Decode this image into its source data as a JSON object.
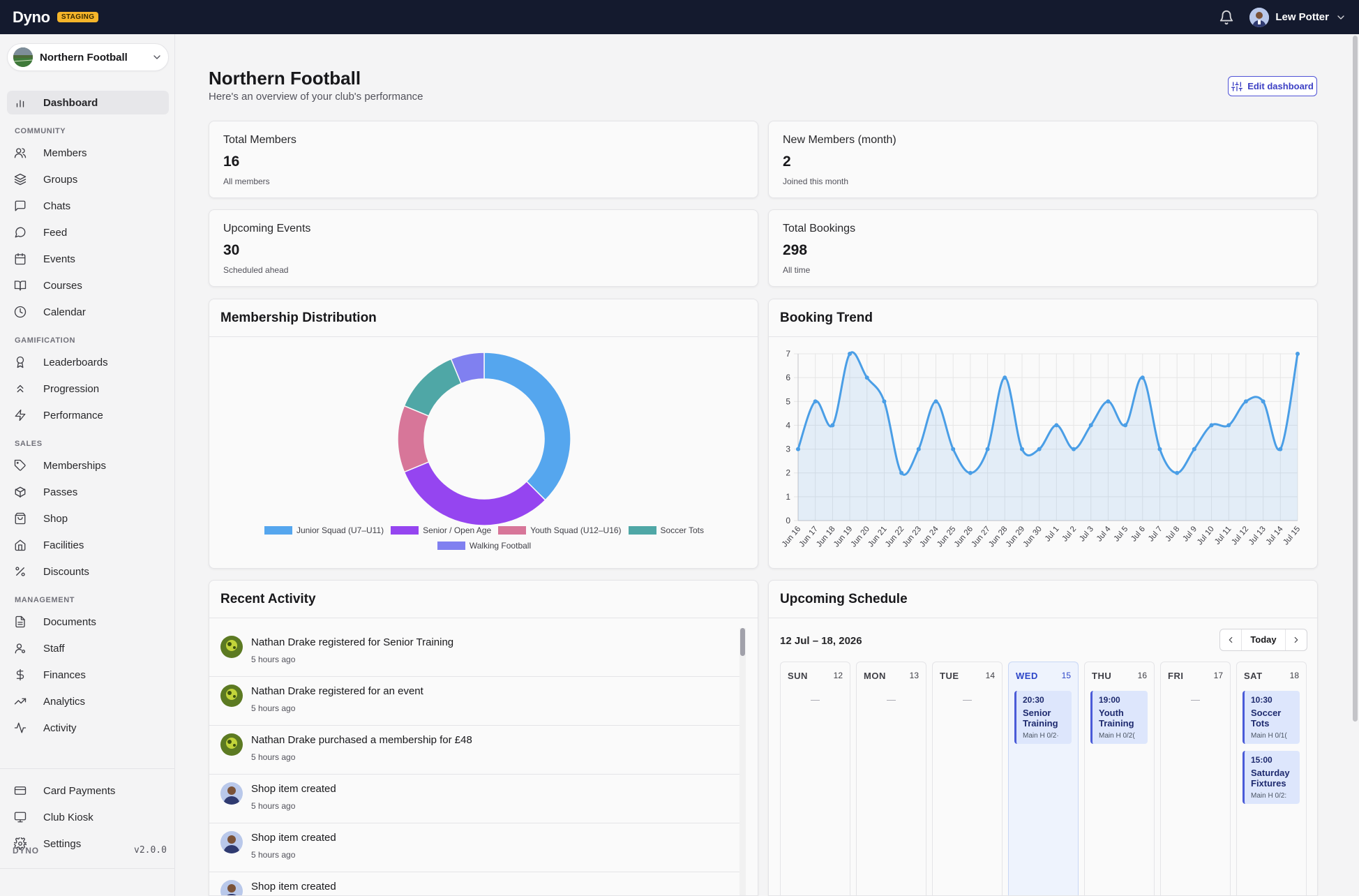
{
  "app": {
    "name": "Dyno",
    "env_badge": "STAGING"
  },
  "user": {
    "name": "Lew Potter"
  },
  "sidebar": {
    "club": "Northern Football",
    "items": {
      "dashboard": "Dashboard",
      "members": "Members",
      "groups": "Groups",
      "chats": "Chats",
      "feed": "Feed",
      "events": "Events",
      "courses": "Courses",
      "calendar": "Calendar",
      "leaderboards": "Leaderboards",
      "progression": "Progression",
      "performance": "Performance",
      "memberships": "Memberships",
      "passes": "Passes",
      "shop": "Shop",
      "facilities": "Facilities",
      "discounts": "Discounts",
      "documents": "Documents",
      "staff": "Staff",
      "finances": "Finances",
      "analytics": "Analytics",
      "activity": "Activity",
      "card_payments": "Card Payments",
      "club_kiosk": "Club Kiosk",
      "settings": "Settings"
    },
    "sections": {
      "community": "COMMUNITY",
      "gamification": "GAMIFICATION",
      "sales": "SALES",
      "management": "MANAGEMENT"
    },
    "footer": {
      "brand": "DYNO",
      "version": "v2.0.0"
    }
  },
  "header": {
    "title": "Northern Football",
    "subtitle": "Here's an overview of your club's performance",
    "edit_button": "Edit dashboard"
  },
  "stats": {
    "total_members": {
      "label": "Total Members",
      "value": "16",
      "sub": "All members"
    },
    "new_members": {
      "label": "New Members (month)",
      "value": "2",
      "sub": "Joined this month"
    },
    "upcoming_events": {
      "label": "Upcoming Events",
      "value": "30",
      "sub": "Scheduled ahead"
    },
    "total_bookings": {
      "label": "Total Bookings",
      "value": "298",
      "sub": "All time"
    }
  },
  "membership": {
    "title": "Membership Distribution"
  },
  "booking": {
    "title": "Booking Trend"
  },
  "chart_data": [
    {
      "type": "pie",
      "categories": [
        "Junior Squad (U7–U11)",
        "Senior / Open Age",
        "Youth Squad (U12–U16)",
        "Soccer Tots",
        "Walking Football"
      ],
      "values": [
        6,
        5,
        2,
        2,
        1
      ],
      "colors": [
        "#55a6ee",
        "#9545f0",
        "#d77699",
        "#4fa7a6",
        "#8080f0"
      ],
      "legend": "bottom"
    },
    {
      "type": "area",
      "x": [
        "Jun 16",
        "Jun 17",
        "Jun 18",
        "Jun 19",
        "Jun 20",
        "Jun 21",
        "Jun 22",
        "Jun 23",
        "Jun 24",
        "Jun 25",
        "Jun 26",
        "Jun 27",
        "Jun 28",
        "Jun 29",
        "Jun 30",
        "Jul 1",
        "Jul 2",
        "Jul 3",
        "Jul 4",
        "Jul 5",
        "Jul 6",
        "Jul 7",
        "Jul 8",
        "Jul 9",
        "Jul 10",
        "Jul 11",
        "Jul 12",
        "Jul 13",
        "Jul 14",
        "Jul 15"
      ],
      "values": [
        3,
        5,
        4,
        7,
        6,
        5,
        2,
        3,
        5,
        3,
        2,
        3,
        6,
        3,
        3,
        4,
        3,
        4,
        5,
        4,
        6,
        3,
        2,
        3,
        4,
        4,
        5,
        5,
        3,
        7
      ],
      "ylim": [
        0,
        7
      ],
      "yticks": [
        "0",
        "1",
        "2",
        "3",
        "4",
        "5",
        "6",
        "7"
      ],
      "grid": true,
      "color": "#4a9ee6"
    }
  ],
  "activity": {
    "title": "Recent Activity",
    "items": [
      {
        "text": "Nathan Drake registered for Senior Training",
        "time": "5 hours ago"
      },
      {
        "text": "Nathan Drake registered for an event",
        "time": "5 hours ago"
      },
      {
        "text": "Nathan Drake purchased a membership for £48",
        "time": "5 hours ago"
      },
      {
        "text": "Shop item created",
        "time": "5 hours ago"
      },
      {
        "text": "Shop item created",
        "time": "5 hours ago"
      },
      {
        "text": "Shop item created",
        "time": ""
      }
    ]
  },
  "schedule": {
    "title": "Upcoming Schedule",
    "range": "12 Jul – 18, 2026",
    "today": "Today",
    "empty": "—",
    "days": [
      {
        "name": "SUN",
        "num": "12"
      },
      {
        "name": "MON",
        "num": "13"
      },
      {
        "name": "TUE",
        "num": "14"
      },
      {
        "name": "WED",
        "num": "15"
      },
      {
        "name": "THU",
        "num": "16"
      },
      {
        "name": "FRI",
        "num": "17"
      },
      {
        "name": "SAT",
        "num": "18"
      }
    ],
    "events": {
      "wed": [
        {
          "time": "20:30",
          "title": "Senior Training",
          "meta": "Main H  0/2·"
        }
      ],
      "thu": [
        {
          "time": "19:00",
          "title": "Youth Training",
          "meta": "Main H  0/2("
        }
      ],
      "sat": [
        {
          "time": "10:30",
          "title": "Soccer Tots",
          "meta": "Main H  0/1("
        },
        {
          "time": "15:00",
          "title": "Saturday Fixtures",
          "meta": "Main H  0/2:"
        }
      ]
    }
  }
}
